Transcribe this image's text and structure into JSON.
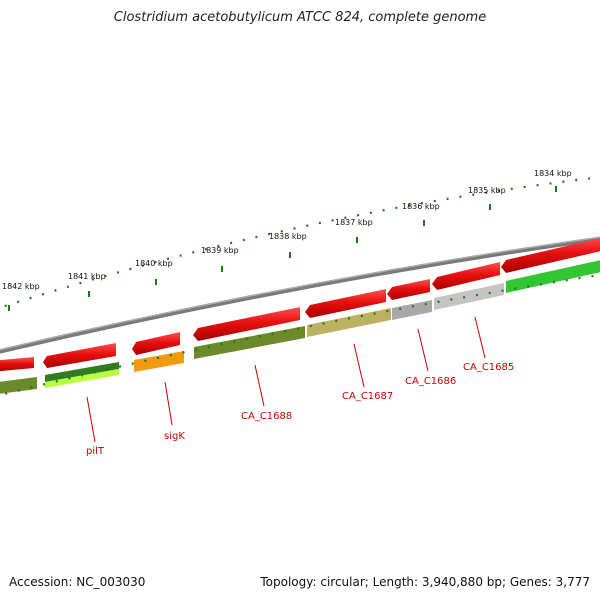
{
  "title": "Clostridium acetobutylicum ATCC 824, complete genome",
  "footer": {
    "accession": "Accession: NC_003030",
    "topology": "Topology: circular; Length: 3,940,880 bp; Genes: 3,777"
  },
  "kbp_ticks": [
    {
      "label": "1842 kbp",
      "pos": 1842
    },
    {
      "label": "1841 kbp",
      "pos": 1841
    },
    {
      "label": "1840 kbp",
      "pos": 1840
    },
    {
      "label": "1839 kbp",
      "pos": 1839
    },
    {
      "label": "1838 kbp",
      "pos": 1838
    },
    {
      "label": "1837 kbp",
      "pos": 1837
    },
    {
      "label": "1836 kbp",
      "pos": 1836
    },
    {
      "label": "1835 kbp",
      "pos": 1835
    },
    {
      "label": "1834 kbp",
      "pos": 1834
    }
  ],
  "gene_labels": [
    {
      "label": "pilT"
    },
    {
      "label": "sigK"
    },
    {
      "label": "CA_C1688"
    },
    {
      "label": "CA_C1687"
    },
    {
      "label": "CA_C1686"
    },
    {
      "label": "CA_C1685"
    }
  ],
  "colors": {
    "cds": "#e81010",
    "backbone": "#888888",
    "label": "#cc0000",
    "tick": "#1a7a1a"
  }
}
